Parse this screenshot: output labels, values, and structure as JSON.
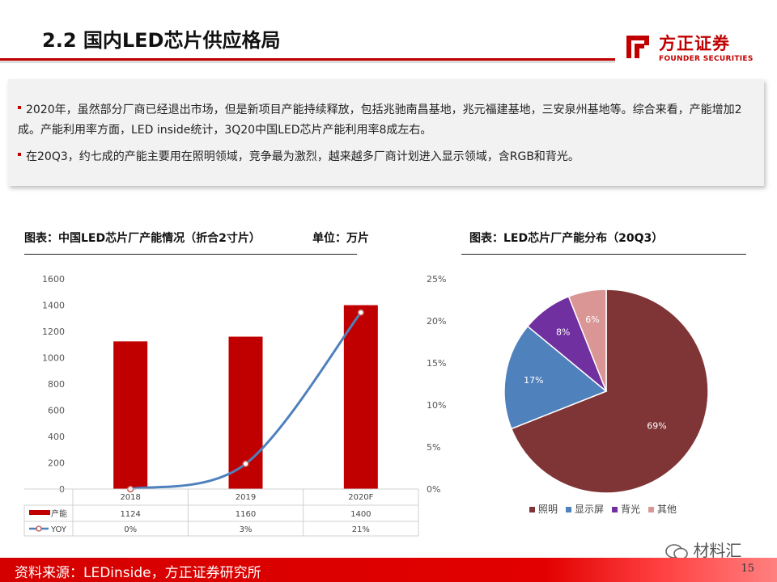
{
  "header": {
    "title": "2.2 国内LED芯片供应格局",
    "brand": {
      "name_cn": "方正证券",
      "name_en": "FOUNDER SECURITIES",
      "color": "#c00000"
    }
  },
  "summary": {
    "bullets": [
      "2020年，虽然部分厂商已经退出市场，但是新项目产能持续释放，包括兆驰南昌基地，兆元福建基地，三安泉州基地等。综合来看，产能增加2成。产能利用率方面，LED inside统计，3Q20中国LED芯片产能利用率8成左右。",
      "在20Q3，约七成的产能主要用在照明领域，竞争最为激烈，越来越多厂商计划进入显示领域，含RGB和背光。"
    ]
  },
  "chart_captions": {
    "left": "图表：中国LED芯片厂产能情况（折合2寸片）",
    "left_unit": "单位：万片",
    "right": "图表：LED芯片厂产能分布（20Q3）"
  },
  "chart_data": [
    {
      "type": "bar",
      "categories": [
        "2018",
        "2019",
        "2020F"
      ],
      "series": [
        {
          "name": "产能",
          "type": "bar",
          "axis": "left",
          "values": [
            1124,
            1160,
            1400
          ],
          "color": "#c00000"
        },
        {
          "name": "YOY",
          "type": "line",
          "axis": "right",
          "values": [
            0,
            3,
            21
          ],
          "value_labels": [
            "0%",
            "3%",
            "21%"
          ],
          "color": "#4f81bd"
        }
      ],
      "y_left": {
        "range": [
          0,
          1600
        ],
        "ticks": [
          "0",
          "200",
          "400",
          "600",
          "800",
          "1000",
          "1200",
          "1400",
          "1600"
        ]
      },
      "y_right": {
        "range": [
          0,
          25
        ],
        "ticks": [
          "0%",
          "5%",
          "10%",
          "15%",
          "20%",
          "25%"
        ]
      },
      "data_table": true,
      "gridlines": false
    },
    {
      "type": "pie",
      "slices": [
        {
          "name": "照明",
          "value": 69,
          "label": "69%",
          "color": "#7f3535"
        },
        {
          "name": "显示屏",
          "value": 17,
          "label": "17%",
          "color": "#4f81bd"
        },
        {
          "name": "背光",
          "value": 8,
          "label": "8%",
          "color": "#7030a0"
        },
        {
          "name": "其他",
          "value": 6,
          "label": "6%",
          "color": "#d99694"
        }
      ],
      "legend_position": "bottom"
    }
  ],
  "footer": {
    "source": "资料来源：LEDinside，方正证券研究所",
    "page": "15",
    "watermark": "材料汇"
  }
}
